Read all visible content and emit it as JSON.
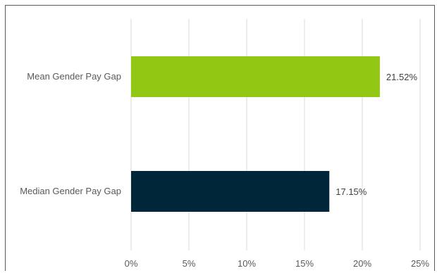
{
  "chart_data": {
    "type": "bar",
    "orientation": "horizontal",
    "categories": [
      "Mean Gender Pay Gap",
      "Median Gender Pay Gap"
    ],
    "values": [
      21.52,
      17.15
    ],
    "value_labels": [
      "21.52%",
      "17.15%"
    ],
    "bar_colors": [
      "#92c814",
      "#00263a"
    ],
    "xlim": [
      0,
      25
    ],
    "x_ticks": [
      0,
      5,
      10,
      15,
      20,
      25
    ],
    "x_tick_labels": [
      "0%",
      "5%",
      "10%",
      "15%",
      "20%",
      "25%"
    ],
    "grid": "vertical",
    "legend": "none"
  }
}
